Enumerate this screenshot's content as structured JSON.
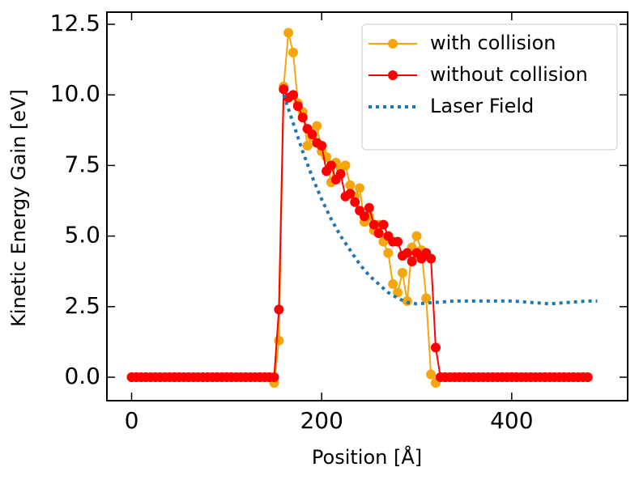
{
  "chart_data": {
    "type": "line",
    "xlabel": "Position [Å]",
    "ylabel": "Kinetic Energy Gain [eV]",
    "xlim": [
      -26,
      522
    ],
    "ylim": [
      -0.83,
      12.93
    ],
    "xticks": [
      0,
      200,
      400
    ],
    "yticks": [
      {
        "value": 0,
        "label": "0.0"
      },
      {
        "value": 2.5,
        "label": "2.5"
      },
      {
        "value": 5,
        "label": "5.0"
      },
      {
        "value": 7.5,
        "label": "7.5"
      },
      {
        "value": 10,
        "label": "10.0"
      },
      {
        "value": 12.5,
        "label": "12.5"
      }
    ],
    "legend": "upper right",
    "series": [
      {
        "name": "with collision",
        "color": "#f5a60c",
        "marker": true,
        "x": [
          0,
          5,
          10,
          15,
          20,
          25,
          30,
          35,
          40,
          45,
          50,
          55,
          60,
          65,
          70,
          75,
          80,
          85,
          90,
          95,
          100,
          105,
          110,
          115,
          120,
          125,
          130,
          135,
          140,
          145,
          150,
          155,
          160,
          165,
          170,
          175,
          180,
          185,
          190,
          195,
          200,
          205,
          210,
          215,
          220,
          225,
          230,
          235,
          240,
          245,
          250,
          255,
          260,
          265,
          270,
          275,
          280,
          285,
          290,
          295,
          300,
          305,
          310,
          315,
          320,
          325,
          330,
          335,
          340,
          345,
          350,
          355,
          360,
          365,
          370,
          375,
          380,
          385,
          390,
          395,
          400,
          405,
          410,
          415,
          420,
          425,
          430,
          435,
          440,
          445,
          450,
          455,
          460,
          465,
          470,
          475,
          480
        ],
        "values": [
          0,
          0,
          0,
          0,
          0,
          0,
          0,
          0,
          0,
          0,
          0,
          0,
          0,
          0,
          0,
          0,
          0,
          0,
          0,
          0,
          0,
          0,
          0,
          0,
          0,
          0,
          0,
          0,
          0,
          0,
          -0.2,
          1.3,
          10.3,
          12.2,
          11.5,
          9.7,
          9.4,
          8.2,
          8.5,
          8.9,
          8.0,
          7.8,
          6.9,
          7.6,
          7.4,
          7.5,
          6.8,
          6.4,
          6.7,
          5.5,
          5.7,
          5.2,
          5.4,
          4.8,
          4.4,
          3.3,
          3.0,
          3.7,
          2.7,
          4.6,
          5.0,
          4.5,
          2.8,
          0.1,
          -0.2,
          0,
          0,
          0,
          0,
          0,
          0,
          0,
          0,
          0,
          0,
          0,
          0,
          0,
          0,
          0,
          0,
          0,
          0,
          0,
          0,
          0,
          0,
          0,
          0,
          0,
          0,
          0,
          0,
          0,
          0,
          0,
          0
        ]
      },
      {
        "name": "without collision",
        "color": "#ff0000",
        "marker": true,
        "x": [
          0,
          5,
          10,
          15,
          20,
          25,
          30,
          35,
          40,
          45,
          50,
          55,
          60,
          65,
          70,
          75,
          80,
          85,
          90,
          95,
          100,
          105,
          110,
          115,
          120,
          125,
          130,
          135,
          140,
          145,
          150,
          155,
          160,
          165,
          170,
          175,
          180,
          185,
          190,
          195,
          200,
          205,
          210,
          215,
          220,
          225,
          230,
          235,
          240,
          245,
          250,
          255,
          260,
          265,
          270,
          275,
          280,
          285,
          290,
          295,
          300,
          305,
          310,
          315,
          320,
          325,
          330,
          335,
          340,
          345,
          350,
          355,
          360,
          365,
          370,
          375,
          380,
          385,
          390,
          395,
          400,
          405,
          410,
          415,
          420,
          425,
          430,
          435,
          440,
          445,
          450,
          455,
          460,
          465,
          470,
          475,
          480
        ],
        "values": [
          0,
          0,
          0,
          0,
          0,
          0,
          0,
          0,
          0,
          0,
          0,
          0,
          0,
          0,
          0,
          0,
          0,
          0,
          0,
          0,
          0,
          0,
          0,
          0,
          0,
          0,
          0,
          0,
          0,
          0,
          0,
          2.4,
          10.2,
          9.9,
          10.0,
          9.6,
          9.2,
          8.8,
          8.6,
          8.3,
          8.2,
          7.3,
          7.5,
          7.0,
          7.2,
          6.4,
          6.5,
          6.2,
          5.9,
          5.7,
          6.0,
          5.4,
          5.1,
          5.4,
          5.0,
          4.8,
          4.8,
          4.3,
          4.4,
          4.1,
          4.4,
          4.2,
          4.4,
          4.2,
          1.05,
          0,
          0,
          0,
          0,
          0,
          0,
          0,
          0,
          0,
          0,
          0,
          0,
          0,
          0,
          0,
          0,
          0,
          0,
          0,
          0,
          0,
          0,
          0,
          0,
          0,
          0,
          0,
          0,
          0,
          0,
          0,
          0
        ]
      },
      {
        "name": "Laser Field",
        "color": "#1f77b4",
        "marker": false,
        "dotted": true,
        "x": [
          160,
          170,
          180,
          190,
          200,
          210,
          220,
          230,
          240,
          250,
          260,
          270,
          280,
          290,
          300,
          320,
          340,
          360,
          380,
          400,
          420,
          440,
          460,
          480,
          490
        ],
        "values": [
          10.0,
          9.0,
          8.0,
          7.1,
          6.3,
          5.6,
          5.0,
          4.5,
          4.0,
          3.6,
          3.3,
          3.0,
          2.8,
          2.65,
          2.6,
          2.65,
          2.7,
          2.7,
          2.7,
          2.7,
          2.65,
          2.6,
          2.65,
          2.7,
          2.7
        ]
      }
    ]
  }
}
